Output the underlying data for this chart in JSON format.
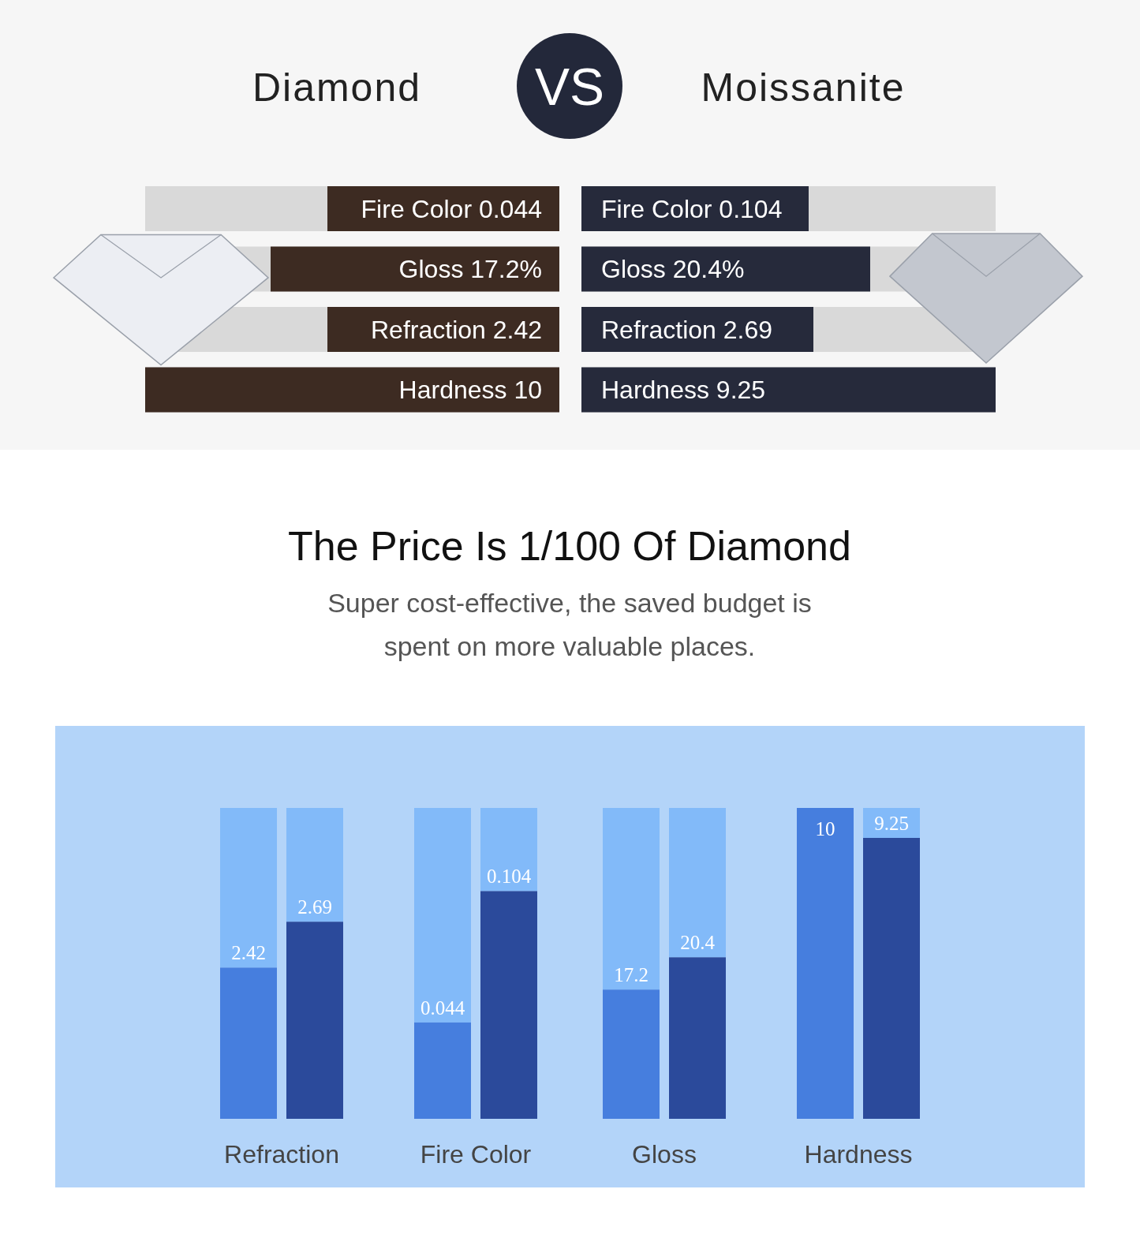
{
  "chart_data": [
    {
      "type": "other",
      "annotations": [
        "Diamond",
        "VS",
        "Moissanite",
        "Fire Color 0.044",
        "Gloss 17.2%",
        "Refraction 2.42",
        "Hardness 10",
        "Fire Color 0.104",
        "Gloss 20.4%",
        "Refraction 2.69",
        "Hardness 9.25"
      ]
    },
    {
      "type": "bar",
      "title": "The Price Is 1/100 Of Diamond",
      "subtitle": "Super cost-effective, the saved budget is spent on more valuable places.",
      "data_labels": true,
      "tick_labels": "x",
      "ylim": [
        1.53,
        3.36
      ],
      "categories": [
        "Refraction"
      ],
      "series": [
        {
          "color": "#467ede",
          "values": [
            2.42
          ]
        },
        {
          "color": "#2b4a9b",
          "values": [
            2.69
          ]
        }
      ]
    },
    {
      "type": "bar",
      "data_labels": true,
      "tick_labels": "x",
      "ylim": [
        0,
        0.142
      ],
      "categories": [
        "Fire Color"
      ],
      "series": [
        {
          "color": "#467ede",
          "values": [
            0.044
          ]
        },
        {
          "color": "#2b4a9b",
          "values": [
            0.104
          ]
        }
      ]
    },
    {
      "type": "bar",
      "data_labels": true,
      "tick_labels": "x",
      "ylim": [
        4.4,
        35.2
      ],
      "categories": [
        "Gloss"
      ],
      "series": [
        {
          "color": "#467ede",
          "values": [
            17.2
          ]
        },
        {
          "color": "#2b4a9b",
          "values": [
            20.4
          ]
        }
      ]
    },
    {
      "type": "bar",
      "data_labels": true,
      "tick_labels": "x",
      "ylim": [
        2.22,
        10
      ],
      "categories": [
        "Hardness"
      ],
      "series": [
        {
          "color": "#467ede",
          "values": [
            10
          ]
        },
        {
          "color": "#2b4a9b",
          "values": [
            9.25
          ]
        }
      ]
    }
  ]
}
